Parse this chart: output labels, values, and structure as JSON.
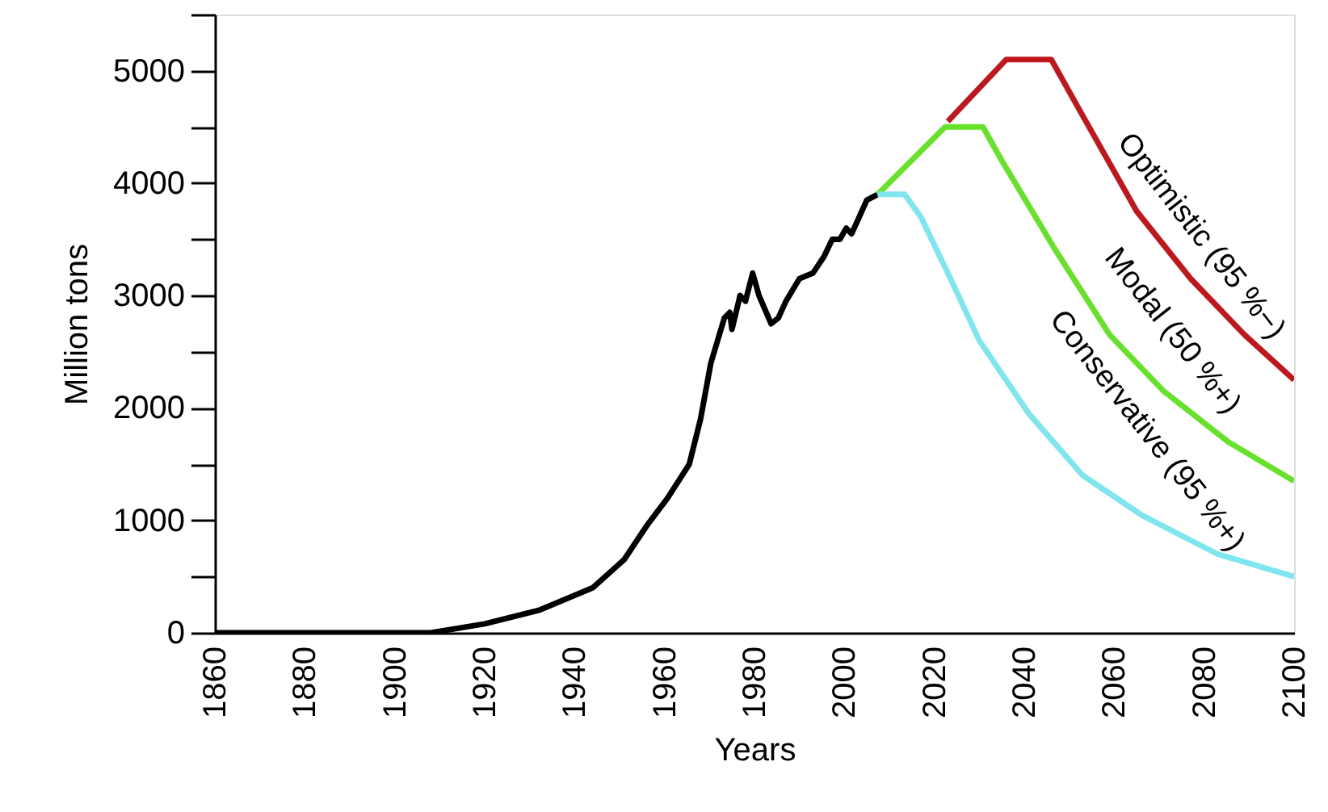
{
  "chart_data": {
    "type": "line",
    "xlabel": "Years",
    "ylabel": "Million tons",
    "xlim": [
      1860,
      2100
    ],
    "ylim": [
      0,
      5500
    ],
    "xticks": [
      1860,
      1880,
      1900,
      1920,
      1940,
      1960,
      1980,
      2000,
      2020,
      2040,
      2060,
      2080,
      2100
    ],
    "yticks": [
      0,
      {
        "value": 500,
        "label": null
      },
      1000,
      {
        "value": 1500,
        "label": null
      },
      2000,
      {
        "value": 2500,
        "label": null
      },
      3000,
      {
        "value": 3500,
        "label": null
      },
      4000,
      {
        "value": 4500,
        "label": null
      },
      5000,
      {
        "value": 5500,
        "label": null
      }
    ],
    "grid": false,
    "legend": false,
    "marker": "none",
    "line_style": "solid",
    "series": [
      {
        "color": "#000000",
        "x": [
          1860,
          1908,
          1920,
          1932,
          1944,
          1951,
          1956,
          1960.7,
          1965.5,
          1968,
          1970.3,
          1973.3,
          1974.5,
          1975,
          1976.8,
          1978,
          1979.6,
          1981,
          1983.7,
          1985.3,
          1987,
          1990,
          1993,
          1995.5,
          1997.3,
          1999,
          2000.4,
          2001.6,
          2003.3,
          2005,
          2007.4
        ],
        "values": [
          0,
          0,
          80,
          200,
          400,
          650,
          950,
          1200,
          1500,
          1900,
          2400,
          2800,
          2850,
          2700,
          3000,
          2950,
          3200,
          3000,
          2750,
          2800,
          2950,
          3150,
          3200,
          3350,
          3500,
          3500,
          3600,
          3550,
          3700,
          3850,
          3900
        ]
      },
      {
        "name": "Optimistic (95 %−)",
        "color": "#c0171d",
        "x": [
          2023,
          2036,
          2046,
          2053,
          2065,
          2077,
          2089,
          2100
        ],
        "values": [
          4550,
          5100,
          5100,
          4600,
          3750,
          3150,
          2650,
          2250
        ]
      },
      {
        "name": "Modal (50 %+)",
        "color": "#66e22a",
        "x": [
          2007.4,
          2022.4,
          2030.8,
          2035,
          2047,
          2059,
          2071,
          2085.3,
          2100
        ],
        "values": [
          3900,
          4500,
          4500,
          4200,
          3400,
          2650,
          2150,
          1700,
          1350
        ]
      },
      {
        "name": "Conservative (95 %+)",
        "color": "#7fe6f0",
        "x": [
          2007.4,
          2013.4,
          2017,
          2023,
          2030,
          2041,
          2053,
          2066,
          2083,
          2100
        ],
        "values": [
          3900,
          3900,
          3700,
          3200,
          2600,
          1950,
          1400,
          1050,
          700,
          500
        ]
      }
    ]
  }
}
